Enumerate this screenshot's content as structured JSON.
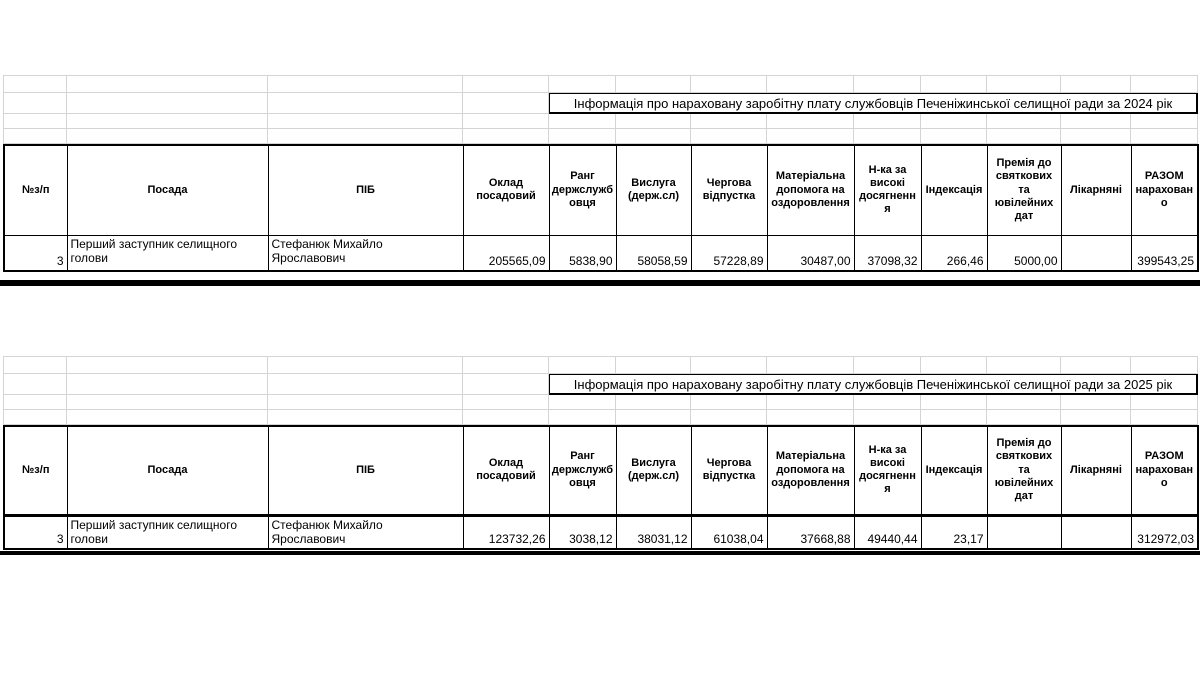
{
  "accent_colors": {
    "grid_line": "#d4d4d4",
    "table_border": "#000000",
    "text": "#000000",
    "background": "#ffffff"
  },
  "tables": [
    {
      "year": "2024",
      "title": "Інформація про нараховану заробітну плату службовців Печеніжинської селищної ради за 2024 рік",
      "columns": [
        "№з/п",
        "Посада",
        "ПІБ",
        "Оклад посадовий",
        "Ранг держслужбовця",
        "Вислуга (держ.сл)",
        "Чергова відпустка",
        "Матеріальна допомога на оздоровлення",
        "Н-ка за високі досягнення",
        "Індексація",
        "Премія до святкових та ювілейних дат",
        "Лікарняні",
        "РАЗОМ нараховано"
      ],
      "rows": [
        {
          "num": "3",
          "posada": "Перший заступник селищного голови",
          "pib": "Стефанюк Михайло Ярославович",
          "values": [
            "205565,09",
            "5838,90",
            "58058,59",
            "57228,89",
            "30487,00",
            "37098,32",
            "266,46",
            "5000,00",
            "",
            "399543,25"
          ]
        }
      ]
    },
    {
      "year": "2025",
      "title": "Інформація про нараховану заробітну плату службовців Печеніжинської селищної ради за 2025 рік",
      "columns": [
        "№з/п",
        "Посада",
        "ПІБ",
        "Оклад посадовий",
        "Ранг держслужбовця",
        "Вислуга (держ.сл)",
        "Чергова відпустка",
        "Матеріальна допомога на оздоровлення",
        "Н-ка за високі досягнення",
        "Індексація",
        "Премія до святкових та ювілейних дат",
        "Лікарняні",
        "РАЗОМ нараховано"
      ],
      "rows": [
        {
          "num": "3",
          "posada": "Перший заступник селищного голови",
          "pib": "Стефанюк Михайло Ярославович",
          "values": [
            "123732,26",
            "3038,12",
            "38031,12",
            "61038,04",
            "37668,88",
            "49440,44",
            "23,17",
            "",
            "",
            "312972,03"
          ]
        }
      ]
    }
  ]
}
